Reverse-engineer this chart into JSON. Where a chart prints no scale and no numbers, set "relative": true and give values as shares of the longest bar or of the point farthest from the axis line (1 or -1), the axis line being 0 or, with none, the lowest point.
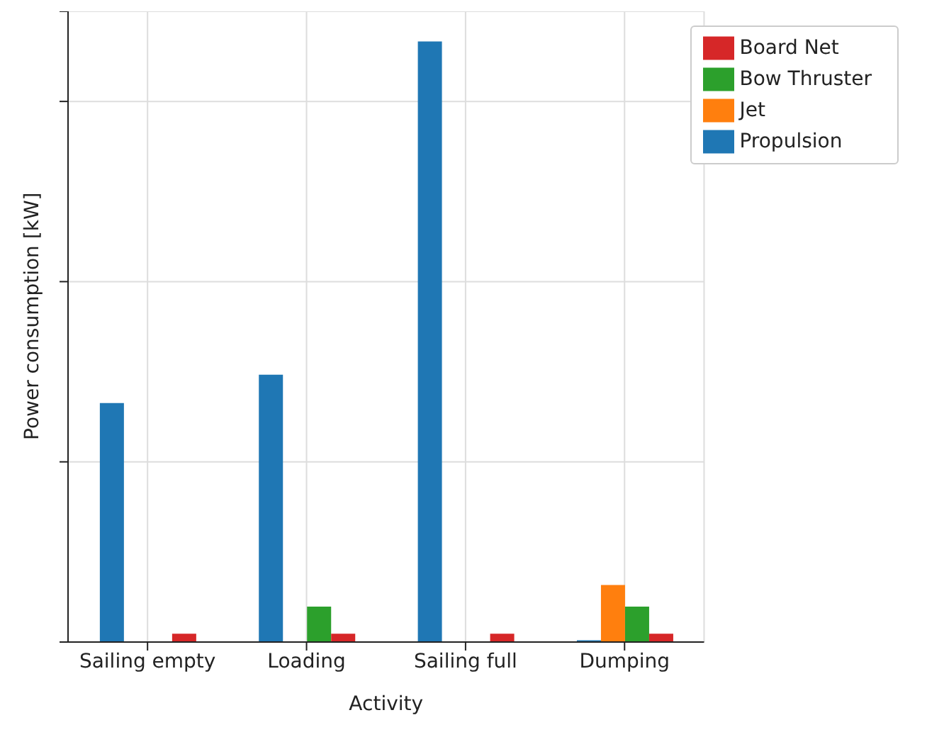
{
  "chart_data": {
    "type": "bar",
    "relative": true,
    "xlabel": "Activity",
    "ylabel": "Power consumption [kW]",
    "categories": [
      "Sailing empty",
      "Loading",
      "Sailing full",
      "Dumping"
    ],
    "series": [
      {
        "name": "Propulsion",
        "color": "#1f77b4",
        "values": [
          0.398,
          0.445,
          1,
          0.003
        ]
      },
      {
        "name": "Jet",
        "color": "#ff7f0e",
        "values": [
          0,
          0,
          0,
          0.095
        ]
      },
      {
        "name": "Bow Thruster",
        "color": "#2ca02c",
        "values": [
          0,
          0.059,
          0,
          0.059
        ]
      },
      {
        "name": "Board Net",
        "color": "#d62728",
        "values": [
          0.014,
          0.014,
          0.014,
          0.014
        ]
      }
    ],
    "grid": true,
    "legend": "top right"
  }
}
